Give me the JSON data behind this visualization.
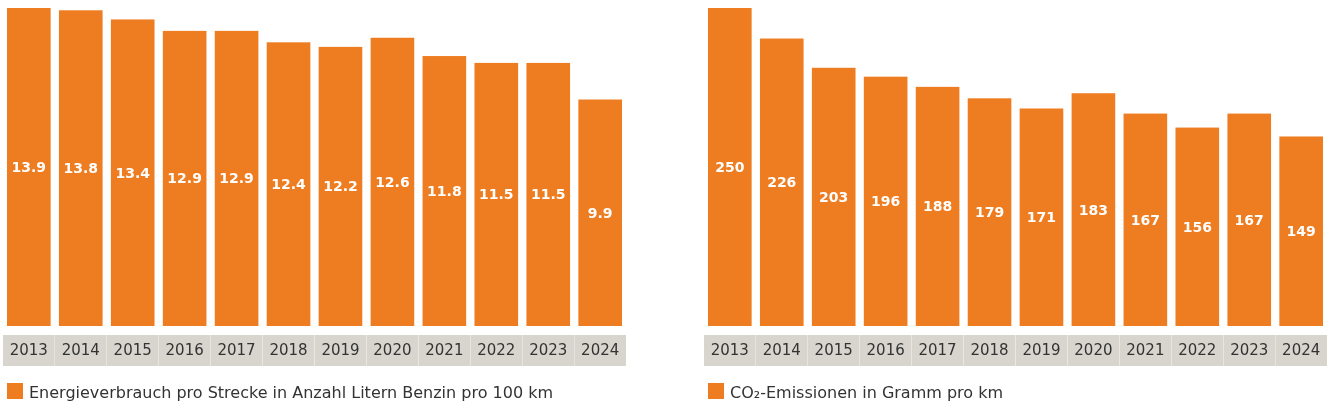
{
  "chart_data": [
    {
      "type": "bar",
      "categories": [
        "2013",
        "2014",
        "2015",
        "2016",
        "2017",
        "2018",
        "2019",
        "2020",
        "2021",
        "2022",
        "2023",
        "2024"
      ],
      "series": [
        {
          "name": "Energieverbrauch pro Strecke in Anzahl Litern Benzin pro 100 km",
          "color": "#ee7d22",
          "values": [
            13.9,
            13.8,
            13.4,
            12.9,
            12.9,
            12.4,
            12.2,
            12.6,
            11.8,
            11.5,
            11.5,
            9.9
          ]
        }
      ],
      "data_labels": true,
      "legend": "bottom"
    },
    {
      "type": "bar",
      "categories": [
        "2013",
        "2014",
        "2015",
        "2016",
        "2017",
        "2018",
        "2019",
        "2020",
        "2021",
        "2022",
        "2023",
        "2024"
      ],
      "series": [
        {
          "name": "CO₂-Emissionen in Gramm pro km",
          "color": "#ee7d22",
          "values": [
            250,
            226,
            203,
            196,
            188,
            179,
            171,
            183,
            167,
            156,
            167,
            149
          ]
        }
      ],
      "data_labels": true,
      "legend": "bottom"
    }
  ]
}
